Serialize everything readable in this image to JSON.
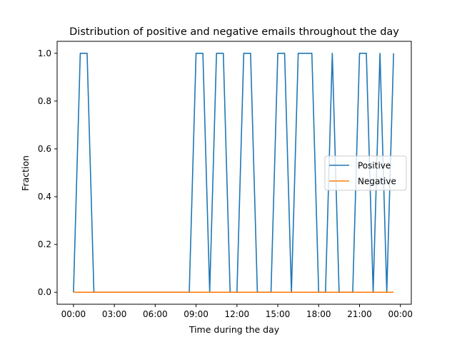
{
  "chart_data": {
    "type": "line",
    "title": "Distribution of positive and negative emails throughout the day",
    "xlabel": "Time during the day",
    "ylabel": "Fraction",
    "xlim_hours": [
      -1.2,
      24.8
    ],
    "ylim": [
      -0.05,
      1.05
    ],
    "x_ticks": [
      {
        "value": 0,
        "label": "00:00"
      },
      {
        "value": 3,
        "label": "03:00"
      },
      {
        "value": 6,
        "label": "06:00"
      },
      {
        "value": 9,
        "label": "09:00"
      },
      {
        "value": 12,
        "label": "12:00"
      },
      {
        "value": 15,
        "label": "15:00"
      },
      {
        "value": 18,
        "label": "18:00"
      },
      {
        "value": 21,
        "label": "21:00"
      },
      {
        "value": 24,
        "label": "00:00"
      }
    ],
    "y_ticks": [
      {
        "value": 0.0,
        "label": "0.0"
      },
      {
        "value": 0.2,
        "label": "0.2"
      },
      {
        "value": 0.4,
        "label": "0.4"
      },
      {
        "value": 0.6,
        "label": "0.6"
      },
      {
        "value": 0.8,
        "label": "0.8"
      },
      {
        "value": 1.0,
        "label": "1.0"
      }
    ],
    "legend_position": "center-right",
    "series": [
      {
        "name": "Positive",
        "color": "#1f77b4",
        "x": [
          0.0,
          0.5,
          1.0,
          1.5,
          2.0,
          2.5,
          3.0,
          3.5,
          4.0,
          4.5,
          5.0,
          5.5,
          6.0,
          6.5,
          7.0,
          7.5,
          8.0,
          8.5,
          9.0,
          9.5,
          10.0,
          10.5,
          11.0,
          11.5,
          12.0,
          12.5,
          13.0,
          13.5,
          14.0,
          14.5,
          15.0,
          15.5,
          16.0,
          16.5,
          17.0,
          17.5,
          18.0,
          18.5,
          19.0,
          19.5,
          20.0,
          20.5,
          21.0,
          21.5,
          22.0,
          22.5,
          23.0,
          23.5
        ],
        "y": [
          0,
          1,
          1,
          0,
          0,
          0,
          0,
          0,
          0,
          0,
          0,
          0,
          0,
          0,
          0,
          0,
          0,
          0,
          1,
          1,
          0,
          1,
          1,
          0,
          0,
          1,
          1,
          0,
          0,
          0,
          1,
          1,
          0,
          1,
          1,
          1,
          0,
          0,
          1,
          0,
          0,
          0,
          1,
          1,
          0,
          1,
          0,
          1
        ]
      },
      {
        "name": "Negative",
        "color": "#ff7f0e",
        "x": [
          0.0,
          0.5,
          1.0,
          1.5,
          2.0,
          2.5,
          3.0,
          3.5,
          4.0,
          4.5,
          5.0,
          5.5,
          6.0,
          6.5,
          7.0,
          7.5,
          8.0,
          8.5,
          9.0,
          9.5,
          10.0,
          10.5,
          11.0,
          11.5,
          12.0,
          12.5,
          13.0,
          13.5,
          14.0,
          14.5,
          15.0,
          15.5,
          16.0,
          16.5,
          17.0,
          17.5,
          18.0,
          18.5,
          19.0,
          19.5,
          20.0,
          20.5,
          21.0,
          21.5,
          22.0,
          22.5,
          23.0,
          23.5
        ],
        "y": [
          0,
          0,
          0,
          0,
          0,
          0,
          0,
          0,
          0,
          0,
          0,
          0,
          0,
          0,
          0,
          0,
          0,
          0,
          0,
          0,
          0,
          0,
          0,
          0,
          0,
          0,
          0,
          0,
          0,
          0,
          0,
          0,
          0,
          0,
          0,
          0,
          0,
          0,
          0,
          0,
          0,
          0,
          0,
          0,
          0,
          0,
          0,
          0
        ]
      }
    ]
  }
}
